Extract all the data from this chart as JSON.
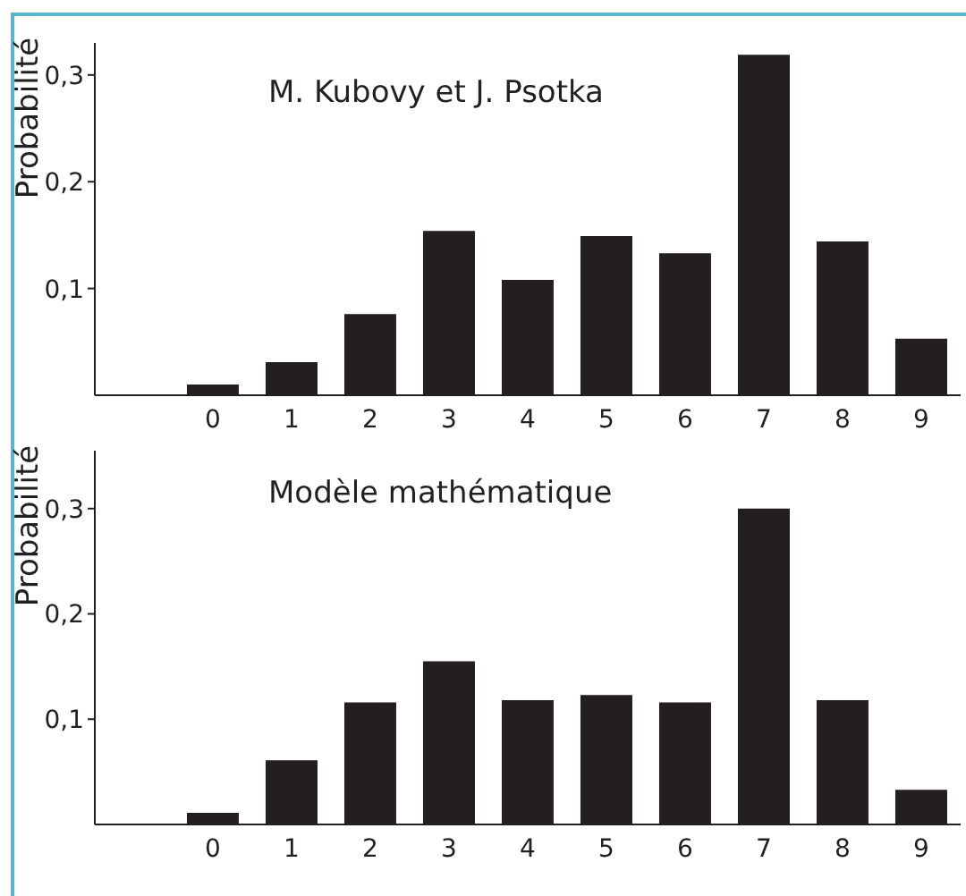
{
  "chart_data": [
    {
      "type": "bar",
      "title": "M. Kubovy et J. Psotka",
      "ylabel": "Probabilité",
      "categories": [
        "0",
        "1",
        "2",
        "3",
        "4",
        "5",
        "6",
        "7",
        "8",
        "9"
      ],
      "values": [
        0.01,
        0.031,
        0.076,
        0.154,
        0.108,
        0.149,
        0.133,
        0.319,
        0.144,
        0.053
      ],
      "color": "#231f20",
      "ylim": [
        0,
        0.33
      ],
      "yticks": [
        {
          "value": 0.1,
          "label": "0,1"
        },
        {
          "value": 0.2,
          "label": "0,2"
        },
        {
          "value": 0.3,
          "label": "0,3"
        }
      ]
    },
    {
      "type": "bar",
      "title": "Modèle mathématique",
      "ylabel": "Probabilité",
      "categories": [
        "0",
        "1",
        "2",
        "3",
        "4",
        "5",
        "6",
        "7",
        "8",
        "9"
      ],
      "values": [
        0.011,
        0.061,
        0.116,
        0.155,
        0.118,
        0.123,
        0.116,
        0.3,
        0.118,
        0.033
      ],
      "color": "#231f20",
      "ylim": [
        0,
        0.355
      ],
      "yticks": [
        {
          "value": 0.1,
          "label": "0,1"
        },
        {
          "value": 0.2,
          "label": "0,2"
        },
        {
          "value": 0.3,
          "label": "0,3"
        }
      ]
    }
  ]
}
